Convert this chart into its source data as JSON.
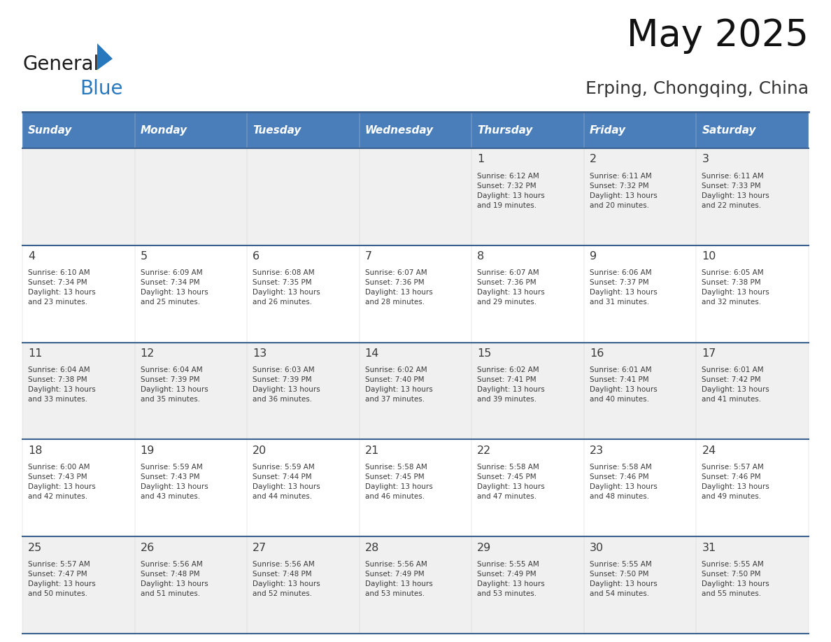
{
  "title": "May 2025",
  "subtitle": "Erping, Chongqing, China",
  "days_of_week": [
    "Sunday",
    "Monday",
    "Tuesday",
    "Wednesday",
    "Thursday",
    "Friday",
    "Saturday"
  ],
  "header_bg": "#4A7EBB",
  "header_text_color": "#FFFFFF",
  "row0_bg": "#F0F0F0",
  "row1_bg": "#FFFFFF",
  "row2_bg": "#F0F0F0",
  "row3_bg": "#FFFFFF",
  "row4_bg": "#F0F0F0",
  "day_number_color": "#3A3A3A",
  "cell_text_color": "#3A3A3A",
  "line_color": "#3A6090",
  "background_color": "#FFFFFF",
  "weeks": [
    [
      {
        "day": "",
        "info": ""
      },
      {
        "day": "",
        "info": ""
      },
      {
        "day": "",
        "info": ""
      },
      {
        "day": "",
        "info": ""
      },
      {
        "day": "1",
        "info": "Sunrise: 6:12 AM\nSunset: 7:32 PM\nDaylight: 13 hours\nand 19 minutes."
      },
      {
        "day": "2",
        "info": "Sunrise: 6:11 AM\nSunset: 7:32 PM\nDaylight: 13 hours\nand 20 minutes."
      },
      {
        "day": "3",
        "info": "Sunrise: 6:11 AM\nSunset: 7:33 PM\nDaylight: 13 hours\nand 22 minutes."
      }
    ],
    [
      {
        "day": "4",
        "info": "Sunrise: 6:10 AM\nSunset: 7:34 PM\nDaylight: 13 hours\nand 23 minutes."
      },
      {
        "day": "5",
        "info": "Sunrise: 6:09 AM\nSunset: 7:34 PM\nDaylight: 13 hours\nand 25 minutes."
      },
      {
        "day": "6",
        "info": "Sunrise: 6:08 AM\nSunset: 7:35 PM\nDaylight: 13 hours\nand 26 minutes."
      },
      {
        "day": "7",
        "info": "Sunrise: 6:07 AM\nSunset: 7:36 PM\nDaylight: 13 hours\nand 28 minutes."
      },
      {
        "day": "8",
        "info": "Sunrise: 6:07 AM\nSunset: 7:36 PM\nDaylight: 13 hours\nand 29 minutes."
      },
      {
        "day": "9",
        "info": "Sunrise: 6:06 AM\nSunset: 7:37 PM\nDaylight: 13 hours\nand 31 minutes."
      },
      {
        "day": "10",
        "info": "Sunrise: 6:05 AM\nSunset: 7:38 PM\nDaylight: 13 hours\nand 32 minutes."
      }
    ],
    [
      {
        "day": "11",
        "info": "Sunrise: 6:04 AM\nSunset: 7:38 PM\nDaylight: 13 hours\nand 33 minutes."
      },
      {
        "day": "12",
        "info": "Sunrise: 6:04 AM\nSunset: 7:39 PM\nDaylight: 13 hours\nand 35 minutes."
      },
      {
        "day": "13",
        "info": "Sunrise: 6:03 AM\nSunset: 7:39 PM\nDaylight: 13 hours\nand 36 minutes."
      },
      {
        "day": "14",
        "info": "Sunrise: 6:02 AM\nSunset: 7:40 PM\nDaylight: 13 hours\nand 37 minutes."
      },
      {
        "day": "15",
        "info": "Sunrise: 6:02 AM\nSunset: 7:41 PM\nDaylight: 13 hours\nand 39 minutes."
      },
      {
        "day": "16",
        "info": "Sunrise: 6:01 AM\nSunset: 7:41 PM\nDaylight: 13 hours\nand 40 minutes."
      },
      {
        "day": "17",
        "info": "Sunrise: 6:01 AM\nSunset: 7:42 PM\nDaylight: 13 hours\nand 41 minutes."
      }
    ],
    [
      {
        "day": "18",
        "info": "Sunrise: 6:00 AM\nSunset: 7:43 PM\nDaylight: 13 hours\nand 42 minutes."
      },
      {
        "day": "19",
        "info": "Sunrise: 5:59 AM\nSunset: 7:43 PM\nDaylight: 13 hours\nand 43 minutes."
      },
      {
        "day": "20",
        "info": "Sunrise: 5:59 AM\nSunset: 7:44 PM\nDaylight: 13 hours\nand 44 minutes."
      },
      {
        "day": "21",
        "info": "Sunrise: 5:58 AM\nSunset: 7:45 PM\nDaylight: 13 hours\nand 46 minutes."
      },
      {
        "day": "22",
        "info": "Sunrise: 5:58 AM\nSunset: 7:45 PM\nDaylight: 13 hours\nand 47 minutes."
      },
      {
        "day": "23",
        "info": "Sunrise: 5:58 AM\nSunset: 7:46 PM\nDaylight: 13 hours\nand 48 minutes."
      },
      {
        "day": "24",
        "info": "Sunrise: 5:57 AM\nSunset: 7:46 PM\nDaylight: 13 hours\nand 49 minutes."
      }
    ],
    [
      {
        "day": "25",
        "info": "Sunrise: 5:57 AM\nSunset: 7:47 PM\nDaylight: 13 hours\nand 50 minutes."
      },
      {
        "day": "26",
        "info": "Sunrise: 5:56 AM\nSunset: 7:48 PM\nDaylight: 13 hours\nand 51 minutes."
      },
      {
        "day": "27",
        "info": "Sunrise: 5:56 AM\nSunset: 7:48 PM\nDaylight: 13 hours\nand 52 minutes."
      },
      {
        "day": "28",
        "info": "Sunrise: 5:56 AM\nSunset: 7:49 PM\nDaylight: 13 hours\nand 53 minutes."
      },
      {
        "day": "29",
        "info": "Sunrise: 5:55 AM\nSunset: 7:49 PM\nDaylight: 13 hours\nand 53 minutes."
      },
      {
        "day": "30",
        "info": "Sunrise: 5:55 AM\nSunset: 7:50 PM\nDaylight: 13 hours\nand 54 minutes."
      },
      {
        "day": "31",
        "info": "Sunrise: 5:55 AM\nSunset: 7:50 PM\nDaylight: 13 hours\nand 55 minutes."
      }
    ]
  ],
  "logo_color_general": "#1a1a1a",
  "logo_color_blue": "#2878BE",
  "logo_triangle_color": "#2878BE",
  "row_bg_colors": [
    "#F0F0F0",
    "#FFFFFF",
    "#F0F0F0",
    "#FFFFFF",
    "#F0F0F0"
  ]
}
